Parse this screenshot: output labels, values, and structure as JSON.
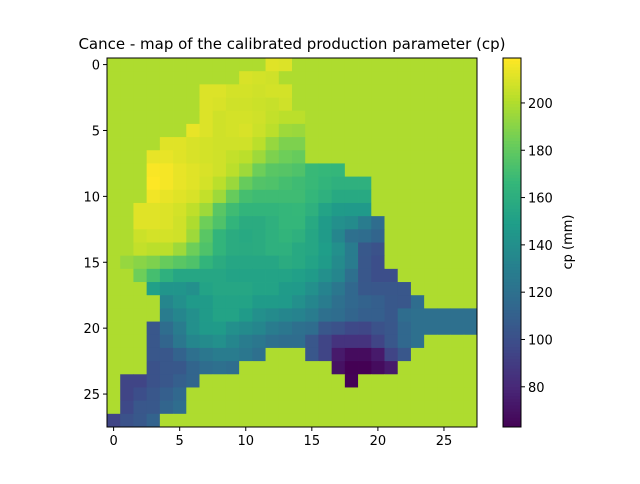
{
  "chart_data": {
    "type": "heatmap",
    "title": "Cance - map of the calibrated production parameter (cp)",
    "colormap": "viridis",
    "colorbar_label": "cp (mm)",
    "colorbar_range": [
      63,
      219
    ],
    "colorbar_ticks": [
      80,
      100,
      120,
      140,
      160,
      180,
      200
    ],
    "x_ticks": [
      0,
      5,
      10,
      15,
      20,
      25
    ],
    "y_ticks": [
      0,
      5,
      10,
      15,
      20,
      25
    ],
    "x_range": [
      -0.5,
      27.5
    ],
    "y_range": [
      27.5,
      -0.5
    ],
    "outside_value": 200,
    "values": [
      [
        200,
        200,
        200,
        200,
        200,
        200,
        200,
        200,
        200,
        200,
        200,
        200,
        212,
        211,
        200,
        200,
        200,
        200,
        200,
        200,
        200,
        200,
        200,
        200,
        200,
        200,
        200,
        200
      ],
      [
        200,
        200,
        200,
        200,
        200,
        200,
        200,
        200,
        200,
        200,
        210,
        209,
        208,
        200,
        200,
        200,
        200,
        200,
        200,
        200,
        200,
        200,
        200,
        200,
        200,
        200,
        200,
        200
      ],
      [
        200,
        200,
        200,
        200,
        200,
        200,
        200,
        211,
        211,
        209,
        209,
        208,
        209,
        209,
        200,
        200,
        200,
        200,
        200,
        200,
        200,
        200,
        200,
        200,
        200,
        200,
        200,
        200
      ],
      [
        200,
        200,
        200,
        200,
        200,
        200,
        200,
        211,
        210,
        208,
        208,
        207,
        206,
        208,
        200,
        200,
        200,
        200,
        200,
        200,
        200,
        200,
        200,
        200,
        200,
        200,
        200,
        200
      ],
      [
        200,
        200,
        200,
        200,
        200,
        200,
        200,
        211,
        208,
        209,
        209,
        208,
        205,
        203,
        203,
        200,
        200,
        200,
        200,
        200,
        200,
        200,
        200,
        200,
        200,
        200,
        200,
        200
      ],
      [
        200,
        200,
        200,
        200,
        200,
        200,
        214,
        211,
        208,
        209,
        210,
        207,
        203,
        196,
        195,
        200,
        200,
        200,
        200,
        200,
        200,
        200,
        200,
        200,
        200,
        200,
        200,
        200
      ],
      [
        200,
        200,
        200,
        200,
        212,
        212,
        210,
        209,
        208,
        208,
        208,
        203,
        194,
        188,
        188,
        200,
        200,
        200,
        200,
        200,
        200,
        200,
        200,
        200,
        200,
        200,
        200,
        200
      ],
      [
        200,
        200,
        200,
        214,
        214,
        212,
        210,
        209,
        208,
        205,
        203,
        196,
        188,
        184,
        182,
        200,
        200,
        200,
        200,
        200,
        200,
        200,
        200,
        200,
        200,
        200,
        200,
        200
      ],
      [
        200,
        200,
        200,
        218,
        217,
        214,
        212,
        210,
        208,
        203,
        196,
        184,
        178,
        177,
        175,
        168,
        167,
        166,
        200,
        200,
        200,
        200,
        200,
        200,
        200,
        200,
        200,
        200
      ],
      [
        200,
        200,
        200,
        219,
        217,
        214,
        212,
        209,
        203,
        195,
        182,
        176,
        175,
        172,
        170,
        168,
        165,
        162,
        162,
        162,
        200,
        200,
        200,
        200,
        200,
        200,
        200,
        200
      ],
      [
        200,
        200,
        200,
        216,
        214,
        212,
        210,
        205,
        196,
        182,
        172,
        170,
        170,
        170,
        170,
        166,
        162,
        157,
        157,
        157,
        200,
        200,
        200,
        200,
        200,
        200,
        200,
        200
      ],
      [
        200,
        200,
        212,
        212,
        211,
        209,
        204,
        196,
        178,
        170,
        165,
        165,
        165,
        166,
        167,
        162,
        153,
        148,
        147,
        147,
        200,
        200,
        200,
        200,
        200,
        200,
        200,
        200
      ],
      [
        200,
        200,
        212,
        212,
        211,
        208,
        200,
        184,
        175,
        165,
        159,
        159,
        162,
        166,
        166,
        157,
        148,
        141,
        138,
        128,
        118,
        200,
        200,
        200,
        200,
        200,
        200,
        200
      ],
      [
        200,
        200,
        207,
        209,
        209,
        208,
        196,
        178,
        165,
        159,
        157,
        159,
        162,
        165,
        162,
        155,
        148,
        135,
        120,
        118,
        113,
        200,
        200,
        200,
        200,
        200,
        200,
        200
      ],
      [
        200,
        200,
        205,
        203,
        203,
        196,
        184,
        175,
        165,
        159,
        158,
        159,
        162,
        162,
        157,
        155,
        150,
        141,
        128,
        106,
        102,
        200,
        200,
        200,
        200,
        200,
        200,
        200
      ],
      [
        200,
        194,
        191,
        188,
        182,
        178,
        175,
        165,
        159,
        155,
        155,
        155,
        155,
        159,
        157,
        153,
        148,
        138,
        128,
        105,
        100,
        200,
        200,
        200,
        200,
        200,
        200,
        200
      ],
      [
        200,
        200,
        184,
        172,
        162,
        155,
        155,
        155,
        155,
        153,
        153,
        153,
        153,
        153,
        151,
        148,
        141,
        135,
        120,
        105,
        100,
        100,
        200,
        200,
        200,
        200,
        200,
        200
      ],
      [
        200,
        200,
        200,
        151,
        144,
        144,
        141,
        153,
        155,
        155,
        155,
        153,
        153,
        148,
        147,
        141,
        133,
        125,
        115,
        106,
        105,
        105,
        105,
        200,
        200,
        200,
        200,
        200
      ],
      [
        200,
        200,
        200,
        200,
        135,
        141,
        147,
        148,
        153,
        153,
        153,
        148,
        148,
        147,
        141,
        135,
        128,
        120,
        115,
        112,
        110,
        106,
        105,
        118,
        200,
        200,
        200,
        200
      ],
      [
        200,
        200,
        200,
        200,
        128,
        135,
        141,
        148,
        153,
        153,
        148,
        141,
        138,
        135,
        133,
        128,
        120,
        118,
        113,
        110,
        110,
        106,
        118,
        120,
        120,
        120,
        120,
        120
      ],
      [
        200,
        200,
        200,
        105,
        118,
        128,
        141,
        147,
        148,
        141,
        138,
        135,
        128,
        125,
        120,
        118,
        105,
        102,
        97,
        96,
        102,
        105,
        115,
        120,
        120,
        120,
        120,
        120
      ],
      [
        200,
        200,
        200,
        105,
        113,
        125,
        135,
        138,
        141,
        135,
        128,
        125,
        120,
        118,
        118,
        105,
        95,
        86,
        86,
        86,
        95,
        105,
        115,
        120,
        200,
        200,
        200,
        200
      ],
      [
        200,
        200,
        200,
        105,
        105,
        112,
        120,
        125,
        128,
        128,
        125,
        120,
        200,
        200,
        200,
        105,
        95,
        74,
        68,
        68,
        74,
        95,
        105,
        200,
        200,
        200,
        200,
        200
      ],
      [
        200,
        200,
        200,
        102,
        105,
        106,
        113,
        118,
        120,
        118,
        200,
        200,
        200,
        200,
        200,
        200,
        200,
        70,
        63,
        63,
        68,
        74,
        200,
        200,
        200,
        200,
        200,
        200
      ],
      [
        200,
        95,
        95,
        102,
        105,
        110,
        113,
        200,
        200,
        200,
        200,
        200,
        200,
        200,
        200,
        200,
        200,
        200,
        64,
        200,
        200,
        200,
        200,
        200,
        200,
        200,
        200,
        200
      ],
      [
        200,
        95,
        100,
        105,
        110,
        115,
        200,
        200,
        200,
        200,
        200,
        200,
        200,
        200,
        200,
        200,
        200,
        200,
        200,
        200,
        200,
        200,
        200,
        200,
        200,
        200,
        200,
        200
      ],
      [
        200,
        97,
        105,
        106,
        113,
        118,
        200,
        200,
        200,
        200,
        200,
        200,
        200,
        200,
        200,
        200,
        200,
        200,
        200,
        200,
        200,
        200,
        200,
        200,
        200,
        200,
        200,
        200
      ],
      [
        95,
        102,
        106,
        112,
        200,
        200,
        200,
        200,
        200,
        200,
        200,
        200,
        200,
        200,
        200,
        200,
        200,
        200,
        200,
        200,
        200,
        200,
        200,
        200,
        200,
        200,
        200,
        200
      ]
    ]
  }
}
